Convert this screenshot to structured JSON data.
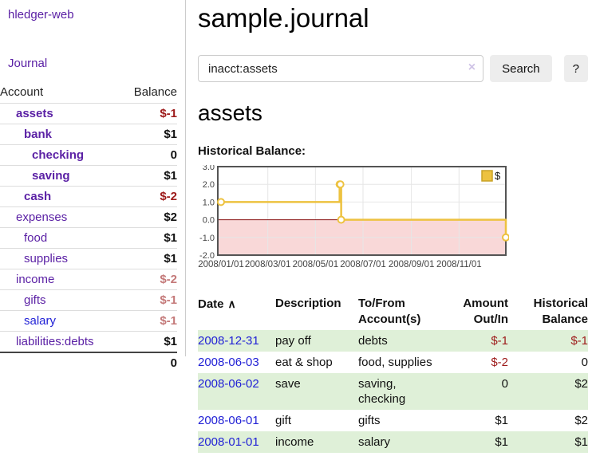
{
  "app": {
    "title": "hledger-web",
    "nav_journal": "Journal"
  },
  "sidebar": {
    "header": {
      "account": "Account",
      "balance": "Balance"
    },
    "accounts": [
      {
        "name": "assets",
        "balance": "$-1",
        "indent": 1,
        "current": true,
        "negative": true,
        "unvisited": false
      },
      {
        "name": "bank",
        "balance": "$1",
        "indent": 2,
        "current": true,
        "negative": false,
        "unvisited": false
      },
      {
        "name": "checking",
        "balance": "0",
        "indent": 3,
        "current": true,
        "negative": false,
        "unvisited": false
      },
      {
        "name": "saving",
        "balance": "$1",
        "indent": 3,
        "current": true,
        "negative": false,
        "unvisited": false
      },
      {
        "name": "cash",
        "balance": "$-2",
        "indent": 2,
        "current": true,
        "negative": true,
        "unvisited": false
      },
      {
        "name": "expenses",
        "balance": "$2",
        "indent": 1,
        "current": false,
        "negative": false,
        "unvisited": false
      },
      {
        "name": "food",
        "balance": "$1",
        "indent": 2,
        "current": false,
        "negative": false,
        "unvisited": false
      },
      {
        "name": "supplies",
        "balance": "$1",
        "indent": 2,
        "current": false,
        "negative": false,
        "unvisited": false
      },
      {
        "name": "income",
        "balance": "$-2",
        "indent": 1,
        "current": false,
        "negative": true,
        "unvisited": false
      },
      {
        "name": "gifts",
        "balance": "$-1",
        "indent": 2,
        "current": false,
        "negative": true,
        "unvisited": false
      },
      {
        "name": "salary",
        "balance": "$-1",
        "indent": 2,
        "current": false,
        "negative": true,
        "unvisited": true
      },
      {
        "name": "liabilities:debts",
        "balance": "$1",
        "indent": 1,
        "current": false,
        "negative": false,
        "unvisited": false
      }
    ],
    "total": "0"
  },
  "main": {
    "title": "sample.journal",
    "search": {
      "value": "inacct:assets",
      "clear_icon": "×",
      "search_button": "Search",
      "help_button": "?"
    },
    "account_heading": "assets",
    "chart_heading": "Historical Balance:"
  },
  "chart_data": {
    "type": "line",
    "style": "steps",
    "title": "Historical Balance of assets",
    "series": [
      {
        "name": "$",
        "color": "#edc240",
        "points": [
          {
            "date": "2008-01-01",
            "value": 1
          },
          {
            "date": "2008-06-01",
            "value": 2
          },
          {
            "date": "2008-06-02",
            "value": 2
          },
          {
            "date": "2008-06-03",
            "value": 0
          },
          {
            "date": "2008-12-31",
            "value": -1
          }
        ]
      }
    ],
    "x_range": [
      "2008-01-01",
      "2008-12-31"
    ],
    "x_ticks": [
      "2008/01/01",
      "2008/03/01",
      "2008/05/01",
      "2008/07/01",
      "2008/09/01",
      "2008/11/01"
    ],
    "y_ticks": [
      3.0,
      2.0,
      1.0,
      0.0,
      -1.0,
      -2.0
    ],
    "ylim": [
      -2,
      3
    ],
    "grid": true,
    "legend_position": "top-right",
    "colors": {
      "grid_line": "#e6e6e6",
      "plot_border": "#545454",
      "negative_region": "#f9d8d8",
      "zero_line": "#8b1616",
      "tick_text": "#444444",
      "legend_box_border": "#c9a227"
    }
  },
  "register": {
    "sort_icon": "∧",
    "headers": {
      "date": "Date",
      "description": "Description",
      "tofrom_1": "To/From",
      "tofrom_2": "Account(s)",
      "amount_1": "Amount",
      "amount_2": "Out/In",
      "balance_1": "Historical",
      "balance_2": "Balance"
    },
    "rows": [
      {
        "date": "2008-12-31",
        "description": "pay off",
        "accounts": "debts",
        "amount": "$-1",
        "amount_negative": true,
        "balance": "$-1",
        "balance_negative": true,
        "highlight": true
      },
      {
        "date": "2008-06-03",
        "description": "eat & shop",
        "accounts": "food, supplies",
        "amount": "$-2",
        "amount_negative": true,
        "balance": "0",
        "balance_negative": false,
        "highlight": false
      },
      {
        "date": "2008-06-02",
        "description": "save",
        "accounts": "saving, checking",
        "amount": "0",
        "amount_negative": false,
        "balance": "$2",
        "balance_negative": false,
        "highlight": true
      },
      {
        "date": "2008-06-01",
        "description": "gift",
        "accounts": "gifts",
        "amount": "$1",
        "amount_negative": false,
        "balance": "$2",
        "balance_negative": false,
        "highlight": false
      },
      {
        "date": "2008-01-01",
        "description": "income",
        "accounts": "salary",
        "amount": "$1",
        "amount_negative": false,
        "balance": "$1",
        "balance_negative": false,
        "highlight": true
      }
    ]
  }
}
